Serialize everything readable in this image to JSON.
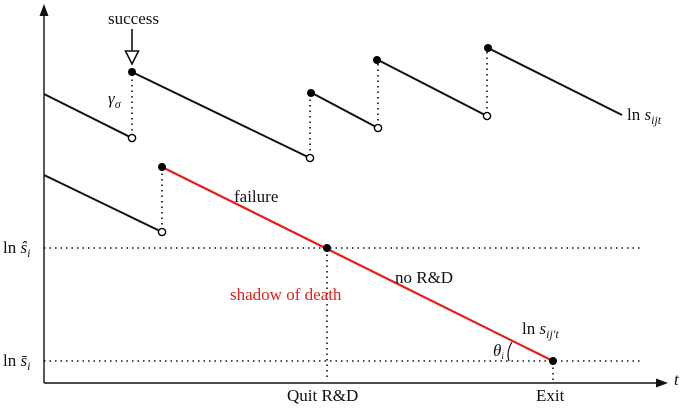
{
  "labels": {
    "success": "success",
    "gamma_base": "γ",
    "gamma_sub": "σ",
    "failure": "failure",
    "no_rd": "no R&D",
    "shadow_of_death": "shadow of death",
    "ln_sijt_ln": "ln",
    "ln_sijt_s": "s",
    "ln_sijt_sub": "ijt",
    "ln_sijprime_ln": "ln",
    "ln_sijprime_s": "s",
    "ln_sijprime_sub": "ij′t",
    "theta_base": "θ",
    "theta_sub": "i",
    "ln_shat_ln": "ln",
    "ln_shat_s": "ŝ",
    "ln_shat_sub": "i",
    "ln_sbar_ln": "ln",
    "ln_sbar_s": "s̄",
    "ln_sbar_sub": "i",
    "quit_rd": "Quit R&D",
    "exit": "Exit",
    "t_axis": "t"
  },
  "colors": {
    "ink": "#111111",
    "red": "#e0201b"
  }
}
